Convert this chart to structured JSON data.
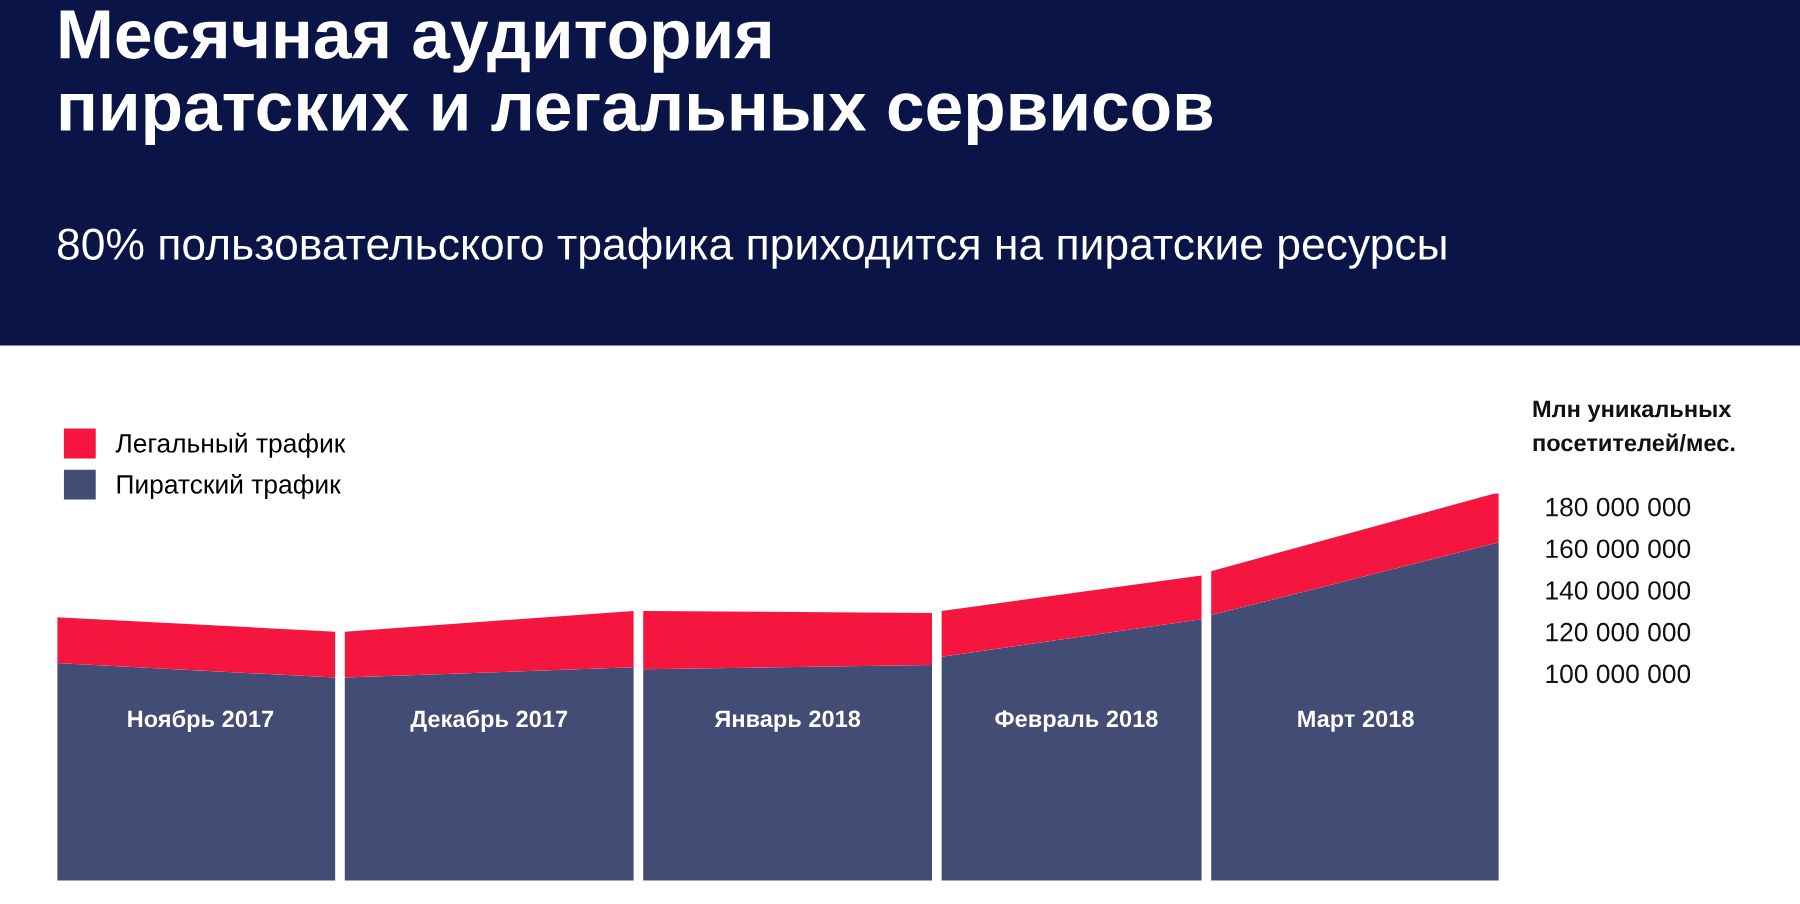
{
  "chart_data": {
    "type": "area",
    "title": "Месячная аудитория\nпиратских и легальных сервисов",
    "subtitle": "80% пользовательского трафика приходится на пиратские ресурсы",
    "stacked": true,
    "legend": "top left",
    "ylabel": "Млн уникальных\nпосетителей/мес.",
    "x": [
      "2017-11-01",
      "2017-11-30",
      "2017-11-30T12:00",
      "2017-12-01",
      "2017-12-31",
      "2017-12-31T12:00",
      "2018-01-01",
      "2018-01-31",
      "2018-01-31T12:00",
      "2018-02-01",
      "2018-02-28",
      "2018-02-28T12:00",
      "2018-03-01",
      "2018-03-31"
    ],
    "yticks": [
      {
        "value": 100000000,
        "label": "100 000 000"
      },
      {
        "value": 120000000,
        "label": "120 000 000"
      },
      {
        "value": 140000000,
        "label": "140 000 000"
      },
      {
        "value": 160000000,
        "label": "160 000 000"
      },
      {
        "value": 180000000,
        "label": "180 000 000"
      }
    ],
    "xlim": [
      "2017-11-01",
      "2018-03-31"
    ],
    "ylim": [
      0,
      187000000
    ],
    "xticks": [
      {
        "value": "2017-11-16",
        "label": "Ноябрь 2017"
      },
      {
        "value": "2017-12-16",
        "label": "Декабрь 2017"
      },
      {
        "value": "2018-01-16",
        "label": "Январь 2018"
      },
      {
        "value": "2018-02-15",
        "label": "Февраль 2018"
      },
      {
        "value": "2018-03-16",
        "label": "Март 2018"
      }
    ],
    "series": [
      {
        "name": "Пиратский трафик",
        "color": "#434c74",
        "values": [
          105000000,
          98000000,
          null,
          98000000,
          103000000,
          null,
          102000000,
          104000000,
          null,
          108000000,
          126000000,
          null,
          128000000,
          163000000
        ]
      },
      {
        "name": "Легальный трафик",
        "color": "#f5163f",
        "values": [
          22000000,
          22000000,
          null,
          22000000,
          27000000,
          null,
          28000000,
          25000000,
          null,
          22000000,
          21000000,
          null,
          21000000,
          24000000
        ]
      }
    ]
  }
}
